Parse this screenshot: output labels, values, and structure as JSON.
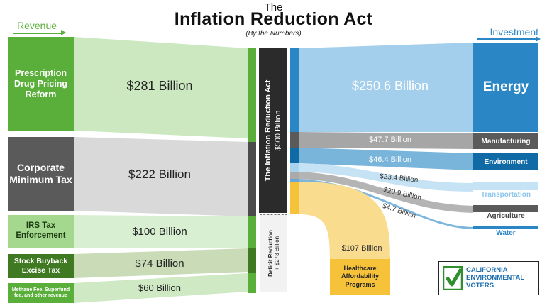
{
  "header": {
    "the": "The",
    "title": "Inflation Reduction Act",
    "subtitle": "(By the Numbers)",
    "revenue_label": "Revenue",
    "investment_label": "Investment"
  },
  "revenue": [
    {
      "label": "Prescription Drug Pricing Reform",
      "amount": "$281 Billion"
    },
    {
      "label": "Corporate Minimum Tax",
      "amount": "$222 Billion"
    },
    {
      "label": "IRS Tax Enforcement",
      "amount": "$100 Billion"
    },
    {
      "label": "Stock Buyback Excise Tax",
      "amount": "$74 Billion"
    },
    {
      "label": "Methane Fee, Superfund fee, and other revenue",
      "amount": "$60 Billion"
    }
  ],
  "center": {
    "act_label": "The Inflation Reduction Act",
    "act_amount": "$500 Billion",
    "deficit_label": "Deficit Reduction",
    "deficit_amount": "+ $273 Billion"
  },
  "investment": [
    {
      "label": "Energy",
      "amount": "$250.6 Billion"
    },
    {
      "label": "Manufacturing",
      "amount": "$47.7 Billion"
    },
    {
      "label": "Environment",
      "amount": "$46.4 Billion"
    },
    {
      "label": "Transportation",
      "amount": "$23.4 Billion"
    },
    {
      "label": "Agriculture",
      "amount": "$20.9 Billion"
    },
    {
      "label": "Water",
      "amount": "$4.7 Billion"
    }
  ],
  "healthcare": {
    "label": "Healthcare Affordability Programs",
    "amount": "$107 Billion"
  },
  "logo": {
    "line1": "CALIFORNIA",
    "line2": "ENVIRONMENTAL",
    "line3": "VOTERS"
  },
  "colors": {
    "revenue_dark": "#5aae3a",
    "revenue_light": "#cde9c2",
    "corporate_dark": "#5a5a5a",
    "corporate_light": "#d6d6d6",
    "energy": "#2a86c4",
    "energy_light": "#a4cfec",
    "healthcare": "#f5c23a",
    "center": "#2b2b2b"
  }
}
